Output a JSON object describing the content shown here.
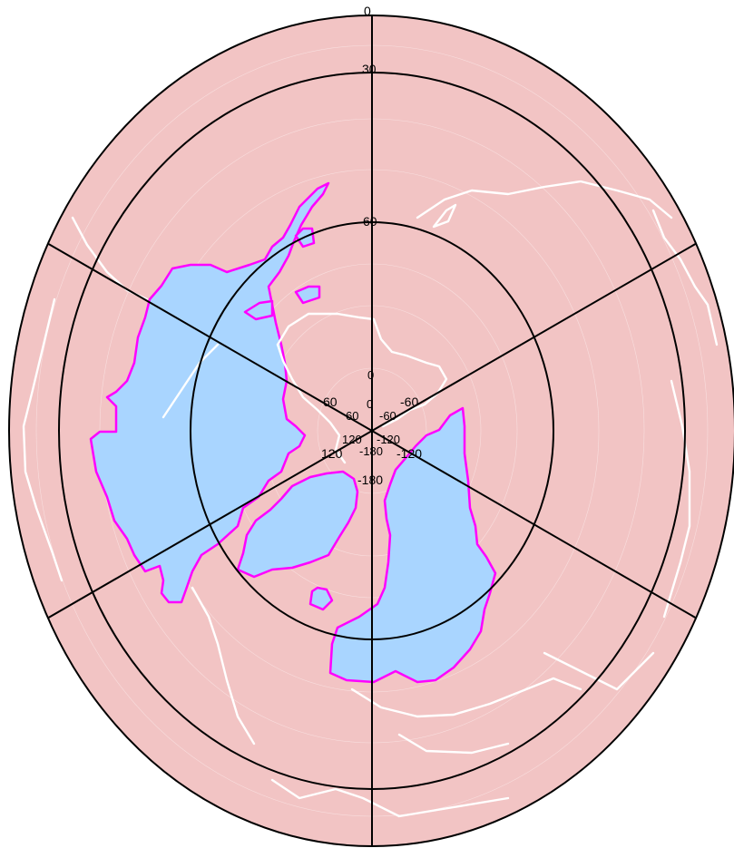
{
  "map": {
    "projection": "polar",
    "pole": "north",
    "colors": {
      "background": "#ffffff",
      "ocean": "#f2c4c4",
      "land": "#ffffff",
      "region_fill": "#a9d5ff",
      "region_outline": "#ff00ff",
      "graticule": "#000000"
    },
    "lat_labels": [
      "0",
      "30",
      "60"
    ],
    "outer_lon_labels": [
      "60",
      "-60",
      "120",
      "-120",
      "-180"
    ],
    "center_labels": [
      "0",
      "60",
      "-60",
      "120",
      "-120",
      "-180"
    ],
    "meridians_deg": [
      0,
      60,
      120,
      180,
      240,
      300
    ]
  }
}
